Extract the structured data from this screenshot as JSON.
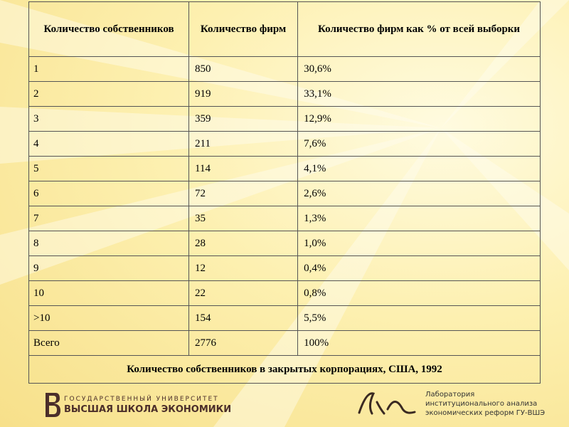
{
  "table": {
    "header": [
      "Количество собственников",
      "Количество фирм",
      "Количество фирм как % от всей выборки"
    ],
    "rows": [
      [
        "1",
        "850",
        "30,6%"
      ],
      [
        "2",
        "919",
        "33,1%"
      ],
      [
        "3",
        "359",
        "12,9%"
      ],
      [
        "4",
        "211",
        "7,6%"
      ],
      [
        "5",
        "114",
        "4,1%"
      ],
      [
        "6",
        "72",
        "2,6%"
      ],
      [
        "7",
        "35",
        "1,3%"
      ],
      [
        "8",
        "28",
        "1,0%"
      ],
      [
        "9",
        "12",
        "0,4%"
      ],
      [
        "10",
        "22",
        "0,8%"
      ],
      [
        ">10",
        "154",
        "5,5%"
      ],
      [
        "Всего",
        "2776",
        "100%"
      ]
    ],
    "caption": "Количество собственников в закрытых корпорациях, США, 1992"
  },
  "footer": {
    "university_top": "ГОСУДАРСТВЕННЫЙ УНИВЕРСИТЕТ",
    "university_bottom": "ВЫСШАЯ ШКОЛА ЭКОНОМИКИ",
    "lab": [
      "Лаборатория",
      "институционального анализа",
      "экономических реформ ГУ-ВШЭ"
    ]
  }
}
